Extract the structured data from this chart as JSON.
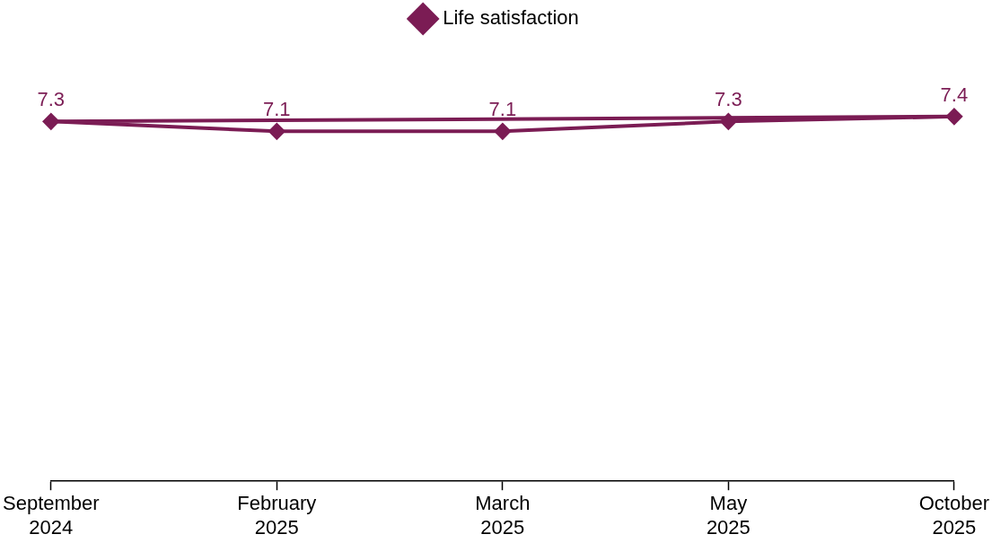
{
  "chart_data": {
    "type": "line",
    "categories": [
      "September 2024",
      "February 2025",
      "March 2025",
      "May 2025",
      "October 2025"
    ],
    "series": [
      {
        "name": "Life satisfaction",
        "color": "#7b1c54",
        "values": [
          7.3,
          7.1,
          7.1,
          7.3,
          7.4
        ],
        "marker": "diamond",
        "value_labels": [
          "7.3",
          "7.1",
          "7.1",
          "7.3",
          "7.4"
        ]
      },
      {
        "type": "line",
        "color": "#7b1c54",
        "values": [
          7.3,
          null,
          null,
          null,
          7.4
        ]
      }
    ],
    "tick_labels": "x",
    "legend": "top",
    "line_style": "solid"
  }
}
